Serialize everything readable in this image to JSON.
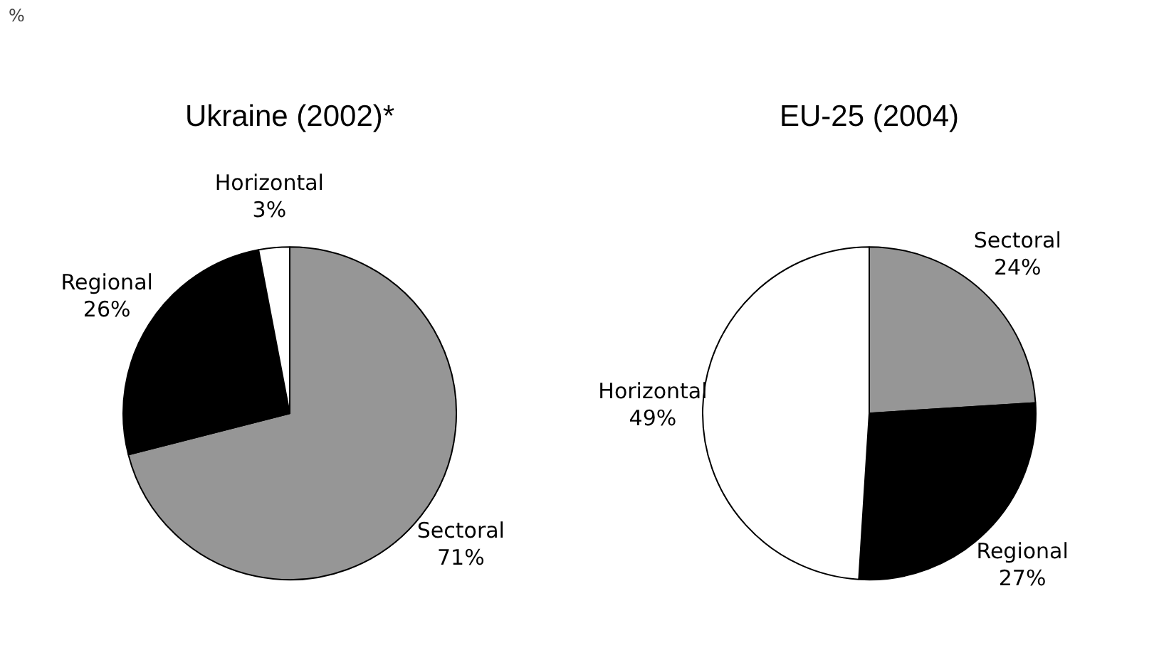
{
  "chart_data": [
    {
      "type": "pie",
      "title": "Ukraine (2002)*",
      "categories": [
        "Sectoral",
        "Regional",
        "Horizontal"
      ],
      "values": [
        71,
        26,
        3
      ],
      "colors": [
        "#969696",
        "#000000",
        "#ffffff"
      ],
      "value_labels": [
        "71%",
        "26%",
        "3%"
      ],
      "legend": false,
      "annotations": [
        "%"
      ]
    },
    {
      "type": "pie",
      "title": "EU-25 (2004)",
      "categories": [
        "Sectoral",
        "Regional",
        "Horizontal"
      ],
      "values": [
        24,
        27,
        49
      ],
      "colors": [
        "#969696",
        "#000000",
        "#ffffff"
      ],
      "value_labels": [
        "24%",
        "27%",
        "49%"
      ],
      "legend": false
    }
  ]
}
